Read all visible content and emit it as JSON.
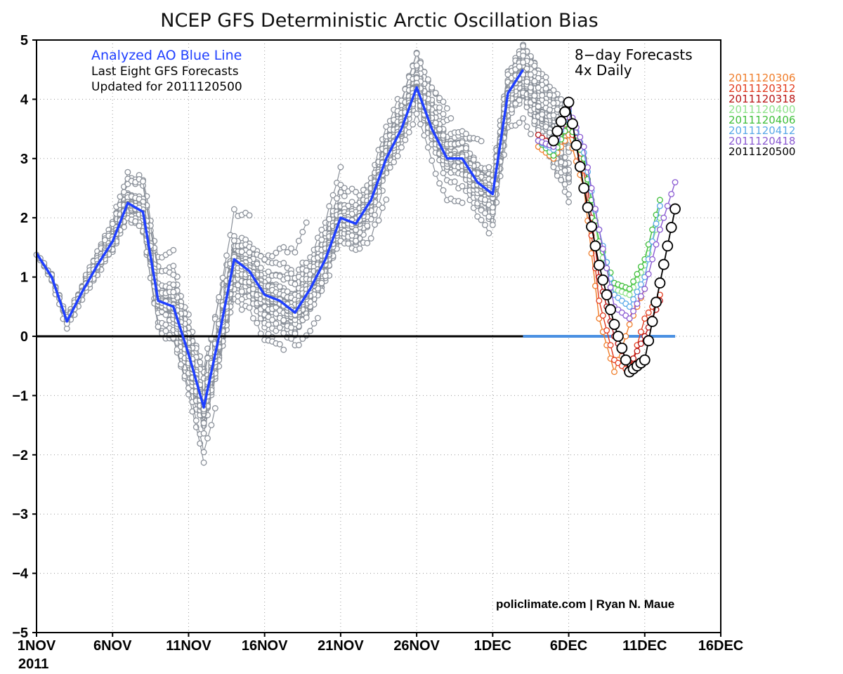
{
  "chart_data": {
    "type": "line",
    "title": "NCEP GFS Deterministic Arctic Oscillation Bias",
    "x_ticks": [
      "1NOV",
      "6NOV",
      "11NOV",
      "16NOV",
      "21NOV",
      "26NOV",
      "1DEC",
      "6DEC",
      "11DEC",
      "16DEC"
    ],
    "x_year_label": "2011",
    "y_ticks": [
      "5",
      "4",
      "3",
      "2",
      "1",
      "0",
      "−1",
      "−2",
      "−3",
      "−4",
      "−5"
    ],
    "ylim": [
      -5,
      5
    ],
    "xlim": [
      "2011-11-01",
      "2011-12-16"
    ],
    "grid": true,
    "annotations": {
      "analyzed": "Analyzed AO Blue Line",
      "last_eight": "Last Eight GFS Forecasts",
      "updated": "Updated for 2011120500",
      "forecast_line1": "8−day Forecasts",
      "forecast_line2": "4x Daily",
      "credit": "policlimate.com | Ryan N. Maue"
    },
    "analyzed_series": {
      "color": "#1f3fff",
      "x": [
        "2011-11-01",
        "2011-11-02",
        "2011-11-03",
        "2011-11-04",
        "2011-11-05",
        "2011-11-06",
        "2011-11-07",
        "2011-11-08",
        "2011-11-09",
        "2011-11-10",
        "2011-11-11",
        "2011-11-12",
        "2011-11-13",
        "2011-11-14",
        "2011-11-15",
        "2011-11-16",
        "2011-11-17",
        "2011-11-18",
        "2011-11-19",
        "2011-11-20",
        "2011-11-21",
        "2011-11-22",
        "2011-11-23",
        "2011-11-24",
        "2011-11-25",
        "2011-11-26",
        "2011-11-27",
        "2011-11-28",
        "2011-11-29",
        "2011-11-30",
        "2011-12-01",
        "2011-12-02",
        "2011-12-03"
      ],
      "y": [
        1.4,
        1.0,
        0.25,
        0.75,
        1.2,
        1.6,
        2.25,
        2.1,
        0.6,
        0.5,
        -0.3,
        -1.2,
        0.0,
        1.3,
        1.1,
        0.7,
        0.6,
        0.4,
        0.8,
        1.3,
        2.0,
        1.9,
        2.3,
        3.0,
        3.5,
        4.2,
        3.5,
        3.0,
        3.0,
        2.6,
        2.4,
        4.1,
        4.5
      ]
    },
    "forecast_series": [
      {
        "name": "2011120306",
        "color": "#f07d2a",
        "x": [
          "2011-12-04",
          "2011-12-05",
          "2011-12-06",
          "2011-12-07",
          "2011-12-08",
          "2011-12-09",
          "2011-12-10",
          "2011-12-11"
        ],
        "y": [
          3.2,
          3.0,
          3.4,
          2.5,
          0.3,
          -0.6,
          0.2,
          0.8
        ]
      },
      {
        "name": "2011120312",
        "color": "#e23a1c",
        "x": [
          "2011-12-04",
          "2011-12-05",
          "2011-12-06",
          "2011-12-07",
          "2011-12-08",
          "2011-12-09",
          "2011-12-10",
          "2011-12-11",
          "2011-12-12"
        ],
        "y": [
          3.3,
          3.1,
          3.6,
          2.8,
          0.6,
          -0.4,
          -0.6,
          0.3,
          0.7
        ]
      },
      {
        "name": "2011120318",
        "color": "#b81414",
        "x": [
          "2011-12-04",
          "2011-12-05",
          "2011-12-06",
          "2011-12-07",
          "2011-12-08",
          "2011-12-09",
          "2011-12-10",
          "2011-12-11",
          "2011-12-12"
        ],
        "y": [
          3.4,
          3.2,
          3.7,
          3.0,
          1.0,
          0.0,
          -0.5,
          0.0,
          0.6
        ]
      },
      {
        "name": "2011120400",
        "color": "#8ee38a",
        "x": [
          "2011-12-04",
          "2011-12-05",
          "2011-12-06",
          "2011-12-07",
          "2011-12-08",
          "2011-12-09",
          "2011-12-10",
          "2011-12-11",
          "2011-12-12"
        ],
        "y": [
          3.3,
          3.1,
          3.6,
          3.0,
          1.5,
          0.8,
          0.7,
          1.2,
          2.0
        ]
      },
      {
        "name": "2011120406",
        "color": "#3fbf3a",
        "x": [
          "2011-12-04",
          "2011-12-05",
          "2011-12-06",
          "2011-12-07",
          "2011-12-08",
          "2011-12-09",
          "2011-12-10",
          "2011-12-11",
          "2011-12-12"
        ],
        "y": [
          3.3,
          3.05,
          3.6,
          3.0,
          1.6,
          0.9,
          0.8,
          1.3,
          2.3
        ]
      },
      {
        "name": "2011120412",
        "color": "#5aa8e8",
        "x": [
          "2011-12-04",
          "2011-12-05",
          "2011-12-06",
          "2011-12-07",
          "2011-12-08",
          "2011-12-09",
          "2011-12-10",
          "2011-12-11",
          "2011-12-12"
        ],
        "y": [
          3.3,
          3.15,
          3.8,
          3.1,
          1.8,
          0.7,
          0.5,
          1.0,
          2.2
        ]
      },
      {
        "name": "2011120418",
        "color": "#8a5ad2",
        "x": [
          "2011-12-04",
          "2011-12-05",
          "2011-12-06",
          "2011-12-07",
          "2011-12-08",
          "2011-12-09",
          "2011-12-10",
          "2011-12-11",
          "2011-12-12",
          "2011-12-13"
        ],
        "y": [
          3.3,
          3.2,
          3.85,
          3.2,
          1.8,
          0.5,
          0.3,
          0.8,
          1.8,
          2.6
        ]
      },
      {
        "name": "2011120500",
        "color": "#000000",
        "x": [
          "2011-12-05",
          "2011-12-06",
          "2011-12-07",
          "2011-12-08",
          "2011-12-09",
          "2011-12-10",
          "2011-12-11",
          "2011-12-12",
          "2011-12-13"
        ],
        "y": [
          3.3,
          3.95,
          2.5,
          1.2,
          0.2,
          -0.6,
          -0.4,
          0.9,
          2.15
        ]
      }
    ],
    "zero_line": {
      "y": 0,
      "black_to": "2011-12-03",
      "blue_to": "2011-12-13",
      "black_color": "#000000",
      "blue_color": "#4a90e2"
    },
    "spaghetti_color": "#8a9099"
  }
}
